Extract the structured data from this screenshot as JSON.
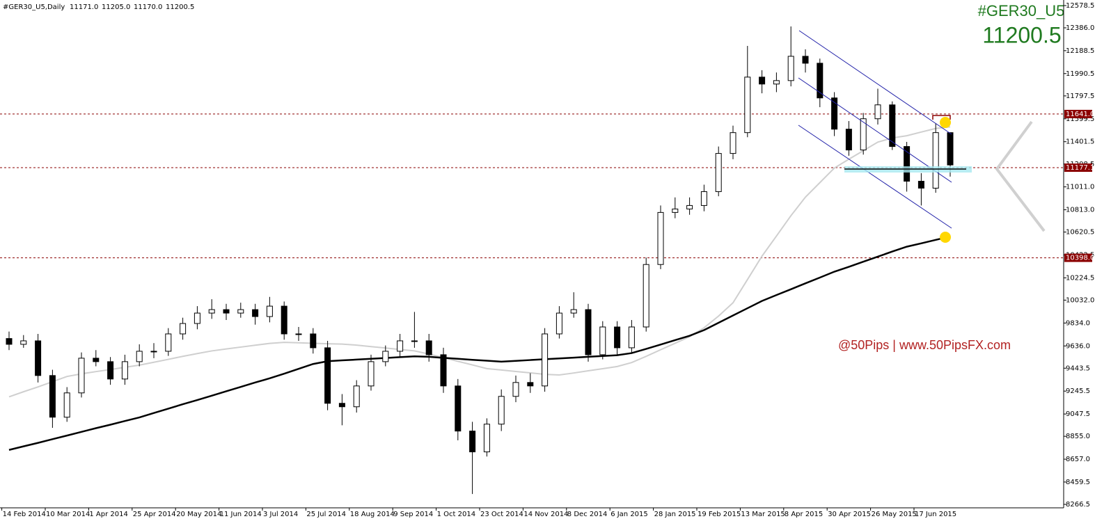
{
  "chart_data": {
    "type": "candlestick",
    "header": "#GER30_U5,Daily",
    "header_ohlc": [
      {
        "value": 11171,
        "label": "11171.0"
      },
      {
        "value": 11205,
        "label": "11205.0"
      },
      {
        "value": 11170,
        "label": "11170.0"
      },
      11200.5
    ],
    "title": "#GER30_U5",
    "price": 11200.5,
    "annotation": "@50Pips | www.50PipsFX.com",
    "categories": [
      "14 Feb 2014",
      null,
      null,
      "10 Mar 2014",
      null,
      null,
      "1 Apr 2014",
      null,
      null,
      "25 Apr 2014",
      null,
      null,
      "20 May 2014",
      null,
      null,
      "11 Jun 2014",
      null,
      null,
      "3 Jul 2014",
      null,
      null,
      "25 Jul 2014",
      null,
      null,
      "18 Aug 2014",
      null,
      null,
      "9 Sep 2014",
      null,
      null,
      "1 Oct 2014",
      null,
      null,
      "23 Oct 2014",
      null,
      null,
      "14 Nov 2014",
      null,
      null,
      "8 Dec 2014",
      null,
      null,
      "6 Jan 2015",
      null,
      null,
      "28 Jan 2015",
      null,
      null,
      "19 Feb 2015",
      null,
      null,
      "13 Mar 2015",
      null,
      null,
      "8 Apr 2015",
      null,
      null,
      "30 Apr 2015",
      null,
      null,
      "26 May 2015",
      null,
      null,
      "17 Jun 2015",
      null,
      null
    ],
    "ohlc": {
      "open": [
        9700,
        9650,
        9680,
        9380,
        9020,
        9230,
        9530,
        9500,
        9350,
        9500,
        9590,
        9590,
        9740,
        9830,
        9920,
        9950,
        9920,
        9950,
        9890,
        9980,
        9740,
        9740,
        9620,
        9140,
        9110,
        9290,
        9500,
        9590,
        9680,
        9680,
        9560,
        9290,
        8900,
        8720,
        8960,
        9200,
        9320,
        9290,
        9740,
        9920,
        9950,
        9560,
        9800,
        9620,
        9800,
        10340,
        10790,
        10820,
        10850,
        10970,
        11300,
        11480,
        11960,
        11900,
        11930,
        12140,
        12080,
        11780,
        11510,
        11330,
        11600,
        11720,
        11360,
        11060,
        11000,
        11480
      ],
      "high": [
        9760,
        9730,
        9740,
        9430,
        9280,
        9580,
        9600,
        9540,
        9560,
        9650,
        9660,
        9790,
        9880,
        9980,
        10040,
        10000,
        10010,
        10000,
        10060,
        10020,
        9800,
        9790,
        9680,
        9220,
        9340,
        9560,
        9640,
        9740,
        9930,
        9740,
        9620,
        9350,
        8980,
        9010,
        9260,
        9380,
        9400,
        9790,
        9980,
        10100,
        10000,
        9850,
        9850,
        9860,
        10400,
        10850,
        10920,
        10920,
        11030,
        11360,
        11540,
        12230,
        12020,
        12000,
        12398,
        12200,
        12120,
        11830,
        11580,
        11650,
        11860,
        11750,
        11400,
        11130,
        11560,
        11330
      ],
      "low": [
        9600,
        9620,
        9320,
        8928,
        8980,
        9190,
        9460,
        9300,
        9300,
        9460,
        9530,
        9550,
        9690,
        9780,
        9870,
        9860,
        9880,
        9820,
        9840,
        9690,
        9680,
        9570,
        9080,
        8950,
        9060,
        9250,
        9460,
        9540,
        9620,
        9500,
        9230,
        8820,
        8356,
        8680,
        8900,
        9150,
        9230,
        9240,
        9700,
        9880,
        9500,
        9520,
        9560,
        9580,
        9760,
        10300,
        10740,
        10770,
        10800,
        10930,
        11250,
        11440,
        11820,
        11830,
        11880,
        12000,
        11700,
        11450,
        11280,
        11290,
        11550,
        11330,
        10970,
        10850,
        10960,
        11100
      ],
      "close": [
        9650,
        9680,
        9380,
        9020,
        9230,
        9530,
        9500,
        9350,
        9500,
        9590,
        9590,
        9740,
        9830,
        9920,
        9950,
        9920,
        9950,
        9890,
        9980,
        9740,
        9740,
        9620,
        9140,
        9110,
        9290,
        9500,
        9590,
        9680,
        9680,
        9560,
        9290,
        8900,
        8720,
        8960,
        9200,
        9320,
        9290,
        9740,
        9920,
        9950,
        9560,
        9800,
        9620,
        9800,
        10340,
        10790,
        10820,
        10850,
        10970,
        11300,
        11480,
        11960,
        11900,
        11930,
        12140,
        12080,
        11780,
        11510,
        11330,
        11600,
        11720,
        11360,
        11060,
        11000,
        11480,
        11200.5
      ]
    },
    "up_color": "#ffffff",
    "down_color": "#000000",
    "series": [
      {
        "color": "#cfcfcf",
        "values": [
          9196,
          9240,
          9282,
          9327,
          9372,
          9395,
          9414,
          9432,
          9451,
          9470,
          9495,
          9520,
          9546,
          9570,
          9593,
          9610,
          9626,
          9642,
          9658,
          9667,
          9663,
          9659,
          9655,
          9652,
          9643,
          9630,
          9618,
          9605,
          9593,
          9566,
          9535,
          9503,
          9472,
          9440,
          9428,
          9415,
          9403,
          9390,
          9385,
          9402,
          9421,
          9439,
          9458,
          9492,
          9546,
          9603,
          9659,
          9716,
          9793,
          9894,
          10009,
          10210,
          10412,
          10586,
          10762,
          10922,
          11048,
          11174,
          11250,
          11324,
          11398,
          11434,
          11453,
          11485,
          11516,
          11530
        ]
      },
      {
        "color": "#000000",
        "values": [
          8737,
          8768,
          8798,
          8830,
          8861,
          8893,
          8925,
          8955,
          8987,
          9018,
          9056,
          9094,
          9132,
          9168,
          9206,
          9244,
          9282,
          9320,
          9356,
          9396,
          9438,
          9480,
          9504,
          9511,
          9518,
          9525,
          9532,
          9539,
          9546,
          9542,
          9533,
          9525,
          9516,
          9508,
          9500,
          9507,
          9514,
          9521,
          9528,
          9535,
          9542,
          9549,
          9556,
          9574,
          9610,
          9648,
          9686,
          9724,
          9773,
          9836,
          9899,
          9962,
          10025,
          10076,
          10126,
          10177,
          10227,
          10278,
          10320,
          10364,
          10408,
          10452,
          10494,
          10523,
          10553,
          10582
        ]
      }
    ],
    "levels": [
      {
        "value": 11641,
        "label": "11641.0"
      },
      11177.1,
      {
        "value": 10398,
        "label": "10398.0"
      }
    ],
    "level_color": "#8b0000",
    "ylim": [
      8236.4,
      12626.6
    ],
    "yticks": [
      12578.5,
      {
        "value": 12386,
        "label": "12386.0"
      },
      12188.5,
      11990.5,
      11797.5,
      11599.5,
      11401.5,
      11208.5,
      {
        "value": 11011,
        "label": "11011.0"
      },
      {
        "value": 10813,
        "label": "10813.0"
      },
      10620.5,
      10422.5,
      10224.5,
      {
        "value": 10032,
        "label": "10032.0"
      },
      {
        "value": 9834,
        "label": "9834.0"
      },
      {
        "value": 9636,
        "label": "9636.0"
      },
      9443.5,
      9245.5,
      9047.5,
      {
        "value": 8855,
        "label": "8855.0"
      },
      {
        "value": 8657,
        "label": "8657.0"
      },
      8459.5,
      8266.5
    ]
  }
}
